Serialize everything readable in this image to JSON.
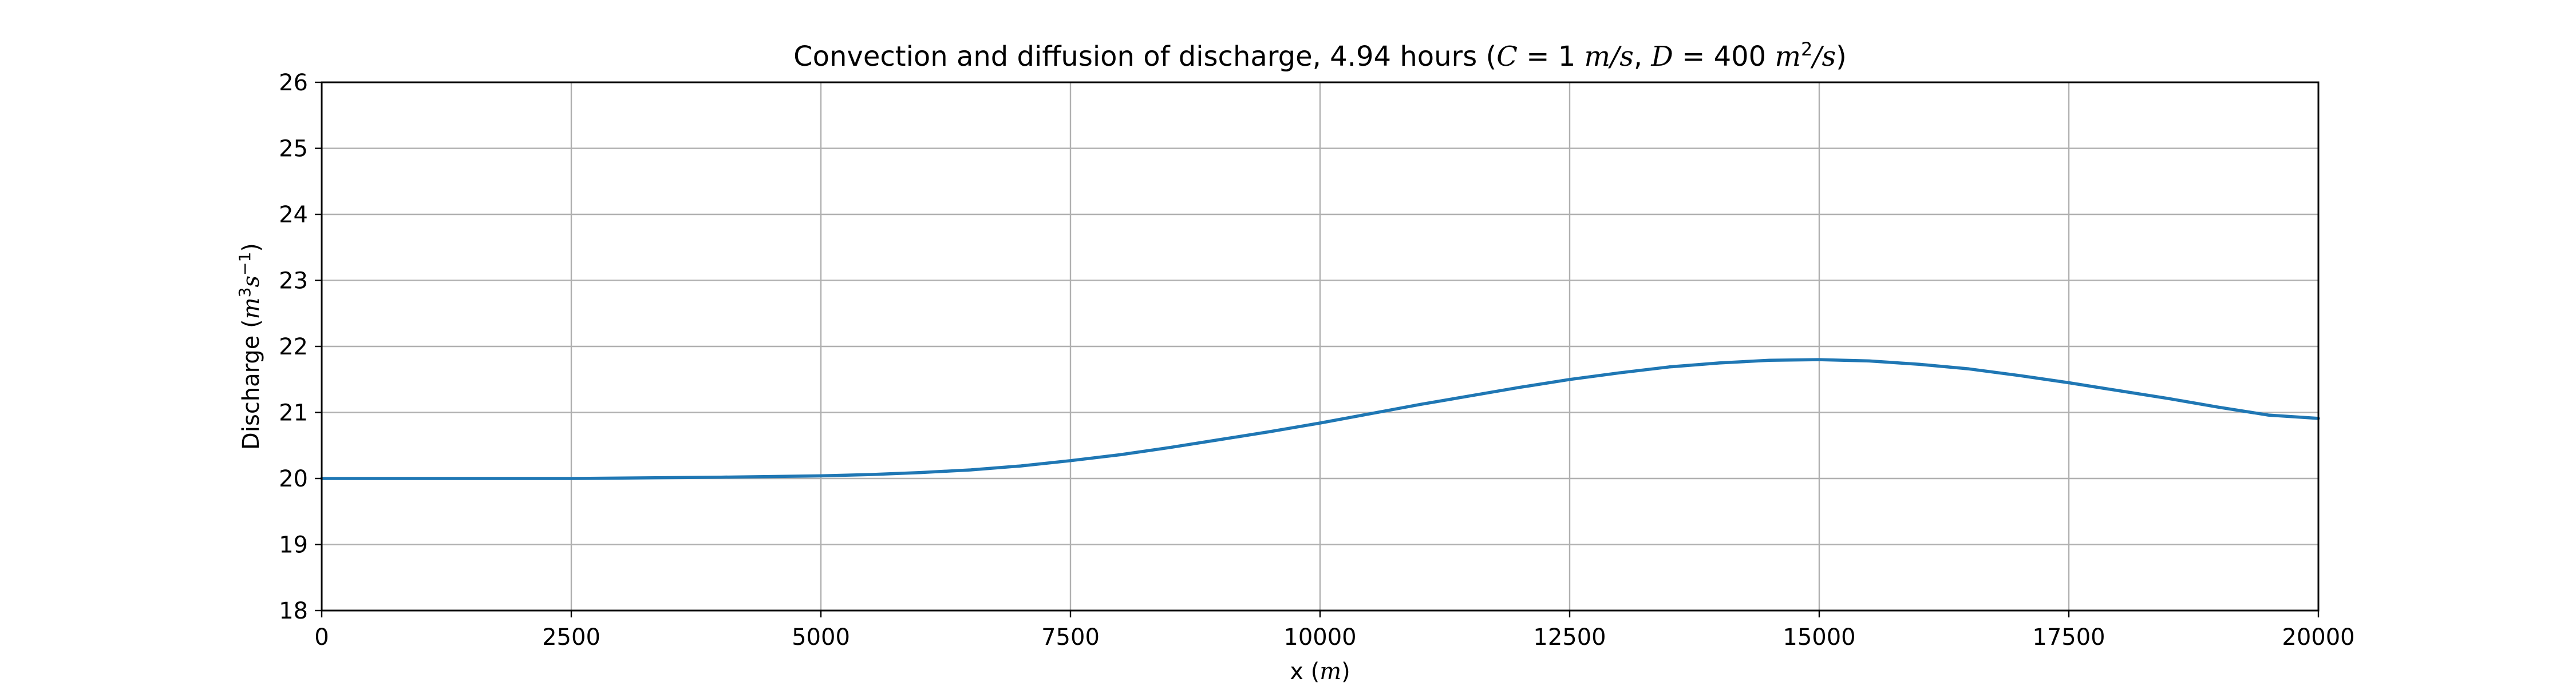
{
  "chart_data": {
    "type": "line",
    "title": {
      "prefix": "Convection and diffusion of discharge, 4.94 hours (",
      "c_symbol": "C",
      "c_value": " = 1 ",
      "c_unit": "m/s",
      "separator": ", ",
      "d_symbol": "D",
      "d_value": " = 400 ",
      "d_unit_base": "m",
      "d_unit_exp": "2",
      "d_unit_tail": "/s",
      "suffix": ")"
    },
    "xlabel": {
      "prefix": "x (",
      "unit": "m",
      "suffix": ")"
    },
    "ylabel": {
      "prefix": "Discharge (",
      "unit_base": "m",
      "unit_exp": "3",
      "unit_mid": "s",
      "unit_exp2": "−1",
      "suffix": ")"
    },
    "xlim": [
      0,
      20000
    ],
    "ylim": [
      18,
      26
    ],
    "xticks": [
      0,
      2500,
      5000,
      7500,
      10000,
      12500,
      15000,
      17500,
      20000
    ],
    "xtick_labels": [
      "0",
      "2500",
      "5000",
      "7500",
      "10000",
      "12500",
      "15000",
      "17500",
      "20000"
    ],
    "yticks": [
      18,
      19,
      20,
      21,
      22,
      23,
      24,
      25,
      26
    ],
    "ytick_labels": [
      "18",
      "19",
      "20",
      "21",
      "22",
      "23",
      "24",
      "25",
      "26"
    ],
    "grid": true,
    "series": [
      {
        "color": "#1f77b4",
        "x": [
          0,
          2500,
          4000,
          5000,
          5500,
          6000,
          6500,
          7000,
          7500,
          8000,
          8500,
          9000,
          9500,
          10000,
          10500,
          11000,
          11500,
          12000,
          12500,
          13000,
          13500,
          14000,
          14500,
          15000,
          15500,
          16000,
          16500,
          17000,
          17500,
          18000,
          18500,
          19000,
          19500,
          20000
        ],
        "y": [
          20.0,
          20.0,
          20.02,
          20.04,
          20.06,
          20.09,
          20.13,
          20.19,
          20.27,
          20.36,
          20.47,
          20.59,
          20.71,
          20.84,
          20.98,
          21.12,
          21.25,
          21.38,
          21.5,
          21.6,
          21.69,
          21.75,
          21.79,
          21.8,
          21.78,
          21.73,
          21.66,
          21.56,
          21.45,
          21.33,
          21.21,
          21.08,
          20.96,
          20.91
        ]
      }
    ]
  }
}
